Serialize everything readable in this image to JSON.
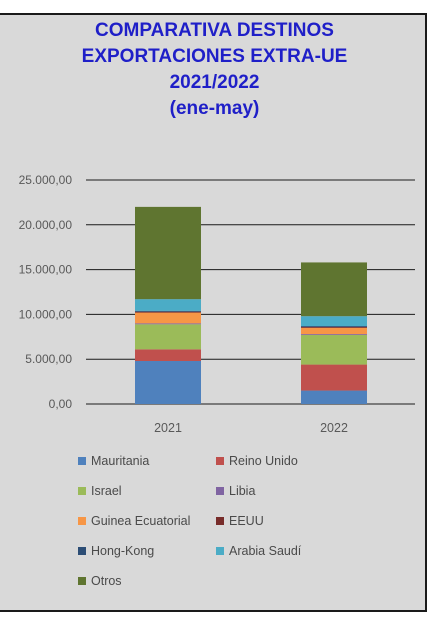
{
  "chart_data": {
    "type": "bar",
    "stacked": true,
    "title_lines": [
      "COMPARATIVA DESTINOS",
      "EXPORTACIONES EXTRA-UE",
      "2021/2022",
      "(ene-may)"
    ],
    "categories": [
      "2021",
      "2022"
    ],
    "ylim": [
      0,
      25000
    ],
    "yticks": [
      0,
      5000,
      10000,
      15000,
      20000,
      25000
    ],
    "ytick_labels": [
      "0,00",
      "5.000,00",
      "10.000,00",
      "15.000,00",
      "20.000,00",
      "25.000,00"
    ],
    "grid": true,
    "legend_position": "bottom",
    "series": [
      {
        "name": "Mauritania",
        "color": "#4f81bd",
        "values": [
          4800,
          1500
        ]
      },
      {
        "name": "Reino Unido",
        "color": "#c0504d",
        "values": [
          1300,
          2900
        ]
      },
      {
        "name": "Israel",
        "color": "#9bbb59",
        "values": [
          2800,
          3300
        ]
      },
      {
        "name": "Libia",
        "color": "#8064a2",
        "values": [
          100,
          100
        ]
      },
      {
        "name": "Guinea Ecuatorial",
        "color": "#f79646",
        "values": [
          1200,
          700
        ]
      },
      {
        "name": "EEUU",
        "color": "#772c2a",
        "values": [
          100,
          100
        ]
      },
      {
        "name": "Hong-Kong",
        "color": "#2c4d75",
        "values": [
          100,
          100
        ]
      },
      {
        "name": "Arabia Saudí",
        "color": "#4bacc6",
        "values": [
          1300,
          1100
        ]
      },
      {
        "name": "Otros",
        "color": "#5f7530",
        "values": [
          10300,
          6000
        ]
      }
    ]
  }
}
